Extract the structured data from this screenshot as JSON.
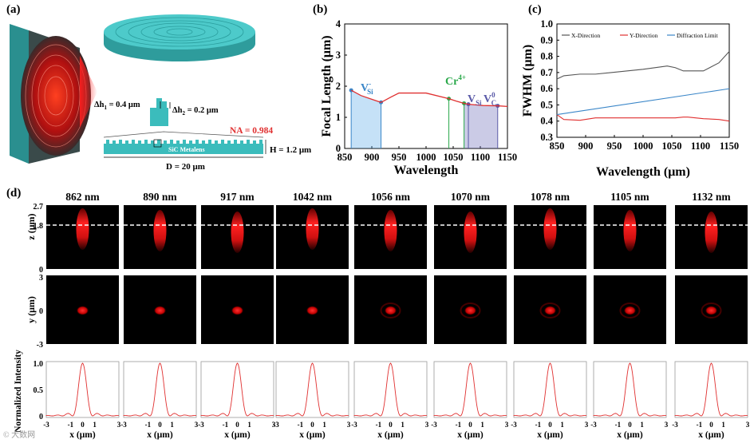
{
  "panel_labels": {
    "a": "(a)",
    "b": "(b)",
    "c": "(c)",
    "d": "(d)"
  },
  "panel_a": {
    "dh1": "Δh",
    "dh1_sub": "1",
    "dh1_val": " = 0.4 μm",
    "dh2": "Δh",
    "dh2_sub": "2",
    "dh2_val": " = 0.2 μm",
    "na": "NA = 0.984",
    "metalens": "SiC Metalens",
    "height": "H = 1.2 μm",
    "diameter": "D = 20 μm"
  },
  "colors": {
    "teal": "#3bbcbc",
    "red_line": "#e03030",
    "grey_line": "#555555",
    "blue_line": "#3a86c8",
    "green": "#2aa84a",
    "purple": "#5a5aa8"
  },
  "chart_data": [
    {
      "type": "line",
      "title": "",
      "xlabel": "Wavelength",
      "ylabel": "Focal Length (μm)",
      "xlim": [
        850,
        1150
      ],
      "ylim": [
        0,
        4
      ],
      "xticks": [
        850,
        900,
        950,
        1000,
        1050,
        1100,
        1150
      ],
      "yticks": [
        0,
        1,
        2,
        3,
        4
      ],
      "series": [
        {
          "name": "Focal length",
          "x": [
            862,
            880,
            900,
            917,
            935,
            950,
            1000,
            1042,
            1056,
            1070,
            1078,
            1105,
            1132,
            1150
          ],
          "y": [
            1.87,
            1.7,
            1.58,
            1.48,
            1.65,
            1.78,
            1.78,
            1.6,
            1.52,
            1.45,
            1.42,
            1.38,
            1.37,
            1.35
          ]
        }
      ],
      "annotations": [
        {
          "text": "V",
          "sup": "-",
          "sub": "Si",
          "color": "#3a86c8"
        },
        {
          "text": "Cr",
          "sup": "4+",
          "sub": "",
          "color": "#2aa84a"
        },
        {
          "text": "V",
          "sup": "",
          "sub": "Si",
          "color": "#5a5aa8"
        },
        {
          "text": "V",
          "sup": "0",
          "sub": "C",
          "color": "#5a5aa8"
        }
      ]
    },
    {
      "type": "line",
      "title": "",
      "xlabel": "Wavelength (μm)",
      "ylabel": "FWHM (μm)",
      "xlim": [
        850,
        1150
      ],
      "ylim": [
        0.3,
        1.0
      ],
      "xticks": [
        850,
        900,
        950,
        1000,
        1050,
        1100,
        1150
      ],
      "yticks": [
        0.3,
        0.4,
        0.5,
        0.6,
        0.7,
        0.8,
        0.9,
        1.0
      ],
      "legend": [
        "X-Direction",
        "Y-Direction",
        "Diffraction Limit"
      ],
      "series": [
        {
          "name": "X-Direction",
          "x": [
            850,
            862,
            890,
            917,
            1000,
            1042,
            1056,
            1070,
            1078,
            1105,
            1132,
            1150
          ],
          "y": [
            0.66,
            0.68,
            0.69,
            0.69,
            0.72,
            0.74,
            0.73,
            0.71,
            0.71,
            0.71,
            0.76,
            0.83
          ]
        },
        {
          "name": "Y-Direction",
          "x": [
            850,
            862,
            890,
            917,
            1000,
            1042,
            1056,
            1070,
            1078,
            1105,
            1132,
            1150
          ],
          "y": [
            0.44,
            0.41,
            0.405,
            0.42,
            0.42,
            0.42,
            0.42,
            0.425,
            0.425,
            0.415,
            0.41,
            0.4
          ]
        },
        {
          "name": "Diffraction Limit",
          "x": [
            850,
            1150
          ],
          "y": [
            0.44,
            0.6
          ]
        }
      ]
    }
  ],
  "panel_d": {
    "wavelengths": [
      "862 nm",
      "890 nm",
      "917 nm",
      "1042 nm",
      "1056 nm",
      "1070 nm",
      "1078 nm",
      "1105 nm",
      "1132 nm"
    ],
    "z_label": "z (μm)",
    "z_ticks": [
      "2.7",
      "1.8",
      "0"
    ],
    "y_label": "y (μm)",
    "y_ticks": [
      "3",
      "0",
      "-3"
    ],
    "int_label": "Normalized Intensity",
    "int_ticks": [
      "1.0",
      "0.5",
      "0"
    ],
    "x_label": "x (μm)",
    "x_ticks": [
      "-3",
      "-1",
      "0",
      "1",
      "3"
    ],
    "watermark": "© 大数网"
  }
}
